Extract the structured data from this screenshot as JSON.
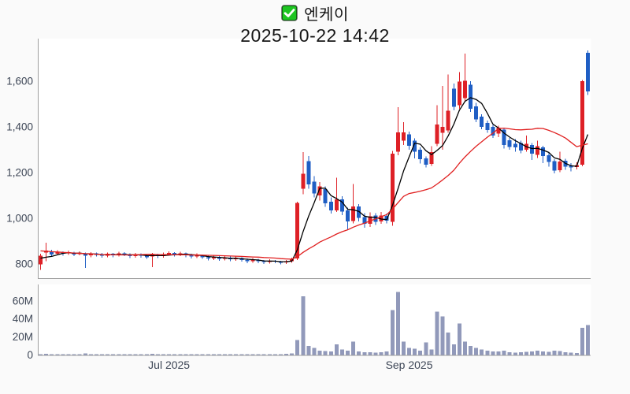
{
  "header": {
    "title": "엔케이",
    "datetime": "2025-10-22 14:42",
    "checkbox_icon": "checked-green-checkbox"
  },
  "chart_data": {
    "type": "candlestick",
    "title": "엔케이",
    "subtitle": "2025-10-22 14:42",
    "legend": "none",
    "grid": false,
    "price_axis": {
      "side": "left",
      "ticks": [
        800,
        1000,
        1200,
        1400,
        1600
      ],
      "tick_labels": [
        "800",
        "1,000",
        "1,200",
        "1,400",
        "1,600"
      ],
      "range": [
        740,
        1780
      ]
    },
    "volume_axis": {
      "side": "left",
      "ticks": [
        0,
        20,
        40,
        60
      ],
      "tick_labels": [
        "0",
        "20M",
        "40M",
        "60M"
      ],
      "range": [
        0,
        78
      ],
      "unit": "millions of shares"
    },
    "x_axis": {
      "ticks": [
        {
          "label": "Jul 2025",
          "date": "2025-07-01"
        },
        {
          "label": "Sep 2025",
          "date": "2025-09-01"
        }
      ]
    },
    "colors": {
      "up_candle": "#de2026",
      "down_candle": "#1f5ec4",
      "ma_short_line": "#000000",
      "ma_long_line": "#e02020",
      "volume_bar": "#9199ba",
      "axis_line": "#9e9e9e",
      "axis_text": "#3d4656",
      "plot_background": "#ffffff",
      "page_background": "#fafafa",
      "checkbox_green": "#1ec522"
    },
    "series": {
      "ma_short_window": 5,
      "ma_long_window": 20,
      "prior_closes": [
        885,
        882,
        880,
        878,
        876,
        874,
        872,
        870,
        868,
        866,
        862,
        858,
        854,
        850,
        845,
        835,
        825,
        818,
        812
      ],
      "candle_format": [
        "date",
        "open",
        "high",
        "low",
        "close",
        "volume_M"
      ],
      "candles": [
        [
          "2025-05-28",
          798,
          845,
          775,
          836,
          0.9
        ],
        [
          "2025-05-29",
          850,
          893,
          812,
          858,
          1.4
        ],
        [
          "2025-05-30",
          856,
          862,
          834,
          842,
          0.8
        ],
        [
          "2025-06-02",
          845,
          860,
          838,
          852,
          0.7
        ],
        [
          "2025-06-03",
          850,
          856,
          836,
          844,
          0.6
        ],
        [
          "2025-06-04",
          846,
          858,
          840,
          852,
          0.7
        ],
        [
          "2025-06-05",
          850,
          854,
          834,
          842,
          0.5
        ],
        [
          "2025-06-09",
          844,
          856,
          838,
          848,
          0.6
        ],
        [
          "2025-06-10",
          846,
          850,
          783,
          836,
          1.6
        ],
        [
          "2025-06-11",
          838,
          852,
          830,
          846,
          0.7
        ],
        [
          "2025-06-12",
          846,
          850,
          832,
          840,
          0.5
        ],
        [
          "2025-06-13",
          842,
          848,
          828,
          836,
          0.5
        ],
        [
          "2025-06-16",
          836,
          850,
          830,
          844,
          0.6
        ],
        [
          "2025-06-17",
          844,
          848,
          830,
          838,
          0.5
        ],
        [
          "2025-06-18",
          838,
          854,
          832,
          846,
          0.8
        ],
        [
          "2025-06-19",
          846,
          852,
          834,
          840,
          0.5
        ],
        [
          "2025-06-20",
          840,
          846,
          826,
          834,
          0.6
        ],
        [
          "2025-06-23",
          834,
          848,
          828,
          842,
          0.6
        ],
        [
          "2025-06-24",
          842,
          846,
          828,
          836,
          0.5
        ],
        [
          "2025-06-25",
          836,
          842,
          822,
          830,
          0.6
        ],
        [
          "2025-06-26",
          832,
          848,
          786,
          840,
          1.2
        ],
        [
          "2025-06-27",
          840,
          844,
          826,
          834,
          0.5
        ],
        [
          "2025-06-30",
          834,
          850,
          828,
          842,
          0.6
        ],
        [
          "2025-07-01",
          842,
          856,
          836,
          848,
          0.7
        ],
        [
          "2025-07-02",
          848,
          852,
          832,
          840,
          0.5
        ],
        [
          "2025-07-03",
          840,
          854,
          834,
          846,
          0.6
        ],
        [
          "2025-07-04",
          846,
          850,
          830,
          838,
          0.5
        ],
        [
          "2025-07-07",
          838,
          844,
          824,
          832,
          0.5
        ],
        [
          "2025-07-08",
          832,
          846,
          826,
          838,
          0.6
        ],
        [
          "2025-07-09",
          838,
          842,
          822,
          830,
          0.6
        ],
        [
          "2025-07-10",
          830,
          836,
          816,
          824,
          0.7
        ],
        [
          "2025-07-11",
          824,
          838,
          818,
          830,
          0.5
        ],
        [
          "2025-07-14",
          830,
          834,
          814,
          822,
          0.6
        ],
        [
          "2025-07-15",
          822,
          836,
          816,
          828,
          0.5
        ],
        [
          "2025-07-16",
          828,
          832,
          812,
          820,
          0.6
        ],
        [
          "2025-07-17",
          820,
          834,
          814,
          826,
          0.5
        ],
        [
          "2025-07-18",
          826,
          830,
          810,
          818,
          0.7
        ],
        [
          "2025-07-21",
          818,
          824,
          804,
          812,
          0.8
        ],
        [
          "2025-07-22",
          812,
          826,
          806,
          818,
          0.6
        ],
        [
          "2025-07-23",
          818,
          822,
          804,
          812,
          0.7
        ],
        [
          "2025-07-24",
          812,
          818,
          800,
          808,
          0.9
        ],
        [
          "2025-07-25",
          808,
          820,
          802,
          814,
          0.8
        ],
        [
          "2025-07-28",
          814,
          818,
          803,
          810,
          0.9
        ],
        [
          "2025-07-29",
          810,
          814,
          798,
          806,
          1.0
        ],
        [
          "2025-07-30",
          806,
          818,
          800,
          812,
          1.1
        ],
        [
          "2025-07-31",
          812,
          828,
          806,
          822,
          1.8
        ],
        [
          "2025-08-01",
          825,
          1072,
          818,
          1068,
          16.5
        ],
        [
          "2025-08-04",
          1130,
          1290,
          1105,
          1195,
          65
        ],
        [
          "2025-08-05",
          1250,
          1272,
          1130,
          1148,
          10
        ],
        [
          "2025-08-06",
          1160,
          1185,
          1092,
          1108,
          8
        ],
        [
          "2025-08-07",
          1100,
          1158,
          1078,
          1140,
          5
        ],
        [
          "2025-08-08",
          1128,
          1140,
          1050,
          1066,
          4.5
        ],
        [
          "2025-08-11",
          1072,
          1092,
          1020,
          1035,
          4
        ],
        [
          "2025-08-12",
          1035,
          1178,
          1028,
          1082,
          12
        ],
        [
          "2025-08-13",
          1082,
          1096,
          1014,
          1030,
          6
        ],
        [
          "2025-08-14",
          1035,
          1046,
          952,
          986,
          5
        ],
        [
          "2025-08-18",
          988,
          1150,
          978,
          1052,
          15
        ],
        [
          "2025-08-19",
          1052,
          1062,
          986,
          1002,
          4
        ],
        [
          "2025-08-20",
          1006,
          1022,
          958,
          976,
          3
        ],
        [
          "2025-08-21",
          976,
          1026,
          962,
          1008,
          3
        ],
        [
          "2025-08-22",
          1012,
          1022,
          970,
          985,
          2.5
        ],
        [
          "2025-08-25",
          986,
          1028,
          976,
          1012,
          3
        ],
        [
          "2025-08-26",
          1010,
          1020,
          978,
          990,
          4
        ],
        [
          "2025-08-27",
          985,
          1295,
          968,
          1283,
          50
        ],
        [
          "2025-08-28",
          1292,
          1486,
          1276,
          1376,
          70
        ],
        [
          "2025-08-29",
          1340,
          1420,
          1320,
          1376,
          15
        ],
        [
          "2025-09-01",
          1368,
          1380,
          1300,
          1318,
          8
        ],
        [
          "2025-09-02",
          1340,
          1350,
          1262,
          1292,
          7
        ],
        [
          "2025-09-03",
          1300,
          1310,
          1240,
          1258,
          5
        ],
        [
          "2025-09-04",
          1262,
          1270,
          1222,
          1235,
          14
        ],
        [
          "2025-09-05",
          1238,
          1315,
          1230,
          1290,
          6
        ],
        [
          "2025-09-08",
          1325,
          1495,
          1315,
          1410,
          48
        ],
        [
          "2025-09-09",
          1375,
          1580,
          1300,
          1400,
          43
        ],
        [
          "2025-09-10",
          1385,
          1630,
          1375,
          1470,
          25
        ],
        [
          "2025-09-11",
          1568,
          1590,
          1472,
          1488,
          12
        ],
        [
          "2025-09-12",
          1495,
          1640,
          1480,
          1598,
          35
        ],
        [
          "2025-09-15",
          1525,
          1720,
          1512,
          1602,
          15
        ],
        [
          "2025-09-16",
          1585,
          1600,
          1465,
          1480,
          10
        ],
        [
          "2025-09-17",
          1490,
          1505,
          1420,
          1432,
          8
        ],
        [
          "2025-09-18",
          1445,
          1455,
          1390,
          1400,
          6
        ],
        [
          "2025-09-19",
          1418,
          1428,
          1375,
          1386,
          5
        ],
        [
          "2025-09-22",
          1400,
          1408,
          1352,
          1362,
          4
        ],
        [
          "2025-09-23",
          1370,
          1406,
          1356,
          1396,
          4
        ],
        [
          "2025-09-24",
          1388,
          1396,
          1306,
          1320,
          5
        ],
        [
          "2025-09-25",
          1342,
          1352,
          1300,
          1312,
          3
        ],
        [
          "2025-09-26",
          1326,
          1346,
          1292,
          1310,
          2.5
        ],
        [
          "2025-09-29",
          1330,
          1340,
          1284,
          1296,
          3
        ],
        [
          "2025-09-30",
          1300,
          1362,
          1292,
          1326,
          3.5
        ],
        [
          "2025-10-01",
          1320,
          1330,
          1256,
          1282,
          4
        ],
        [
          "2025-10-02",
          1278,
          1340,
          1264,
          1316,
          5
        ],
        [
          "2025-10-10",
          1310,
          1318,
          1242,
          1272,
          4
        ],
        [
          "2025-10-13",
          1276,
          1286,
          1226,
          1246,
          3.5
        ],
        [
          "2025-10-14",
          1250,
          1258,
          1196,
          1208,
          5
        ],
        [
          "2025-10-15",
          1210,
          1292,
          1202,
          1248,
          4.5
        ],
        [
          "2025-10-16",
          1252,
          1260,
          1212,
          1226,
          3
        ],
        [
          "2025-10-17",
          1230,
          1242,
          1205,
          1222,
          2.5
        ],
        [
          "2025-10-20",
          1224,
          1244,
          1214,
          1232,
          2.2
        ],
        [
          "2025-10-21",
          1235,
          1605,
          1228,
          1600,
          30
        ],
        [
          "2025-10-22",
          1725,
          1735,
          1540,
          1555,
          33
        ]
      ]
    }
  }
}
